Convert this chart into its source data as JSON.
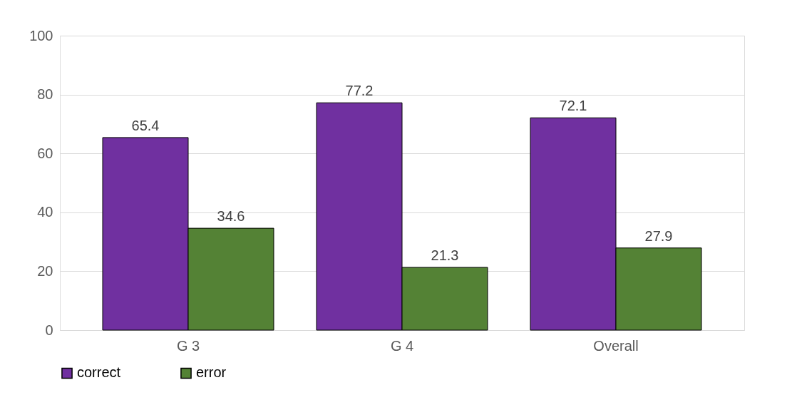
{
  "chart_data": {
    "type": "bar",
    "categories": [
      "G 3",
      "G 4",
      "Overall"
    ],
    "series": [
      {
        "name": "correct",
        "color": "#7030a0",
        "values": [
          65.4,
          77.2,
          72.1
        ]
      },
      {
        "name": "error",
        "color": "#548235",
        "values": [
          34.6,
          21.3,
          27.9
        ]
      }
    ],
    "ylim": [
      0,
      100
    ],
    "yticks": [
      0,
      20,
      40,
      60,
      80,
      100
    ],
    "grid": "y",
    "legend": "bottom",
    "data_labels": true
  }
}
